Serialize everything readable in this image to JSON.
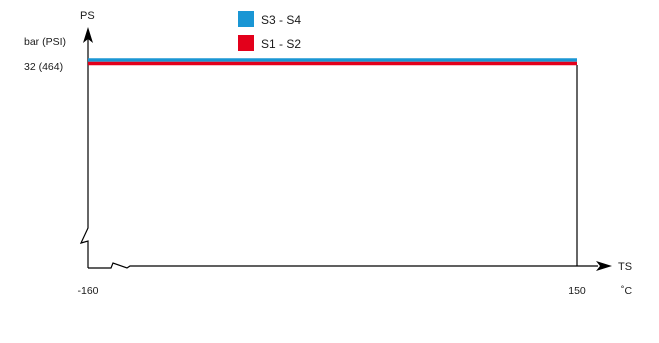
{
  "chart_data": {
    "type": "line",
    "title": "",
    "y_axis": {
      "name": "PS",
      "unit": "bar (PSI)"
    },
    "x_axis": {
      "name": "TS",
      "unit": "˚C"
    },
    "xlim": [
      -160,
      150
    ],
    "ylim": [
      0,
      32
    ],
    "x_ticks": [
      {
        "value": -160,
        "label": "-160"
      },
      {
        "value": 150,
        "label": "150"
      }
    ],
    "y_ticks": [
      {
        "value": 32,
        "label": "32  (464)"
      }
    ],
    "series": [
      {
        "name": "S3 - S4",
        "color": "#1a96d4",
        "x": [
          -160,
          150
        ],
        "y": [
          32,
          32
        ]
      },
      {
        "name": "S1 - S2",
        "color": "#e3001b",
        "x": [
          -160,
          150
        ],
        "y": [
          32,
          32
        ]
      }
    ],
    "legend_position": "top-center",
    "grid": false
  }
}
